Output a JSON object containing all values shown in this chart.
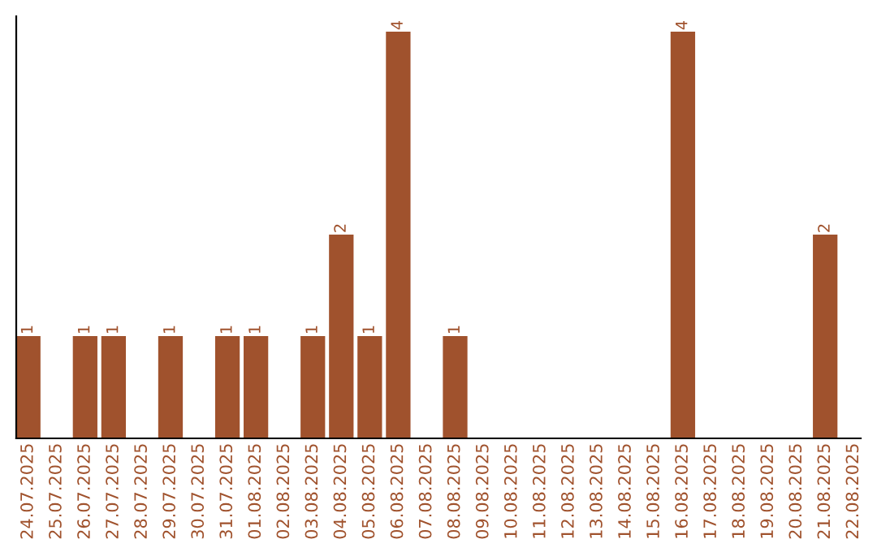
{
  "chart_data": {
    "type": "bar",
    "categories": [
      "24.07.2025",
      "25.07.2025",
      "26.07.2025",
      "27.07.2025",
      "28.07.2025",
      "29.07.2025",
      "30.07.2025",
      "31.07.2025",
      "01.08.2025",
      "02.08.2025",
      "03.08.2025",
      "04.08.2025",
      "05.08.2025",
      "06.08.2025",
      "07.08.2025",
      "08.08.2025",
      "09.08.2025",
      "10.08.2025",
      "11.08.2025",
      "12.08.2025",
      "13.08.2025",
      "14.08.2025",
      "15.08.2025",
      "16.08.2025",
      "17.08.2025",
      "18.08.2025",
      "19.08.2025",
      "20.08.2025",
      "21.08.2025",
      "22.08.2025"
    ],
    "values": [
      1,
      0,
      1,
      1,
      0,
      1,
      0,
      1,
      1,
      0,
      1,
      2,
      1,
      4,
      0,
      1,
      0,
      0,
      0,
      0,
      0,
      0,
      0,
      4,
      0,
      0,
      0,
      0,
      2,
      0
    ],
    "value_labels": [
      "1",
      null,
      "1",
      "1",
      null,
      "1",
      null,
      "1",
      "1",
      null,
      "1",
      "2",
      "1",
      "4",
      null,
      "1",
      null,
      null,
      null,
      null,
      null,
      null,
      null,
      "4",
      null,
      null,
      null,
      null,
      "2",
      null
    ],
    "color": "#a0522d",
    "grid": false,
    "legend": false
  }
}
